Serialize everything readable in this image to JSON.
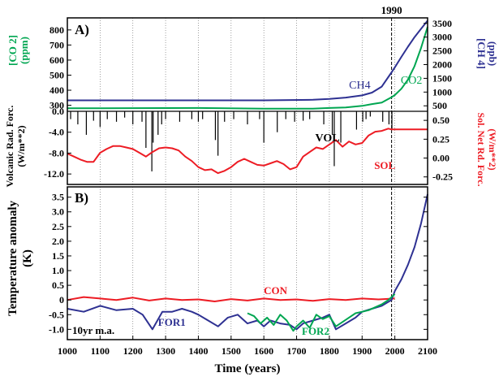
{
  "chart_data": [
    {
      "panel_label": "A)",
      "marker_label": "1990",
      "marker_x": 1990,
      "type": "line",
      "xlim": [
        1000,
        2100
      ],
      "subplots": [
        {
          "name": "greenhouse gases",
          "left_axis": {
            "label_line1": "[CO 2]",
            "label_line2": "(ppm)",
            "color": "#00a651",
            "ticks": [
              "800",
              "700",
              "600",
              "500",
              "400",
              "300"
            ],
            "tick_values": [
              800,
              700,
              600,
              500,
              400,
              300
            ],
            "ylim": [
              260,
              880
            ]
          },
          "right_axis": {
            "label_line1": "[CH 4]",
            "label_line2": "(ppb)",
            "color": "#2e3192",
            "ticks": [
              "3500",
              "3000",
              "2500",
              "2000",
              "1500",
              "1000",
              "500"
            ],
            "tick_values": [
              3500,
              3000,
              2500,
              2000,
              1500,
              1000,
              500
            ],
            "ylim": [
              300,
              3700
            ]
          },
          "series": [
            {
              "name": "CO2",
              "color": "#00a651",
              "axis": "left",
              "x": [
                1000,
                1200,
                1400,
                1600,
                1750,
                1800,
                1850,
                1900,
                1930,
                1960,
                1990,
                2000,
                2020,
                2040,
                2060,
                2080,
                2100
              ],
              "y": [
                280,
                281,
                282,
                278,
                278,
                282,
                286,
                296,
                308,
                318,
                354,
                368,
                410,
                470,
                560,
                680,
                820
              ]
            },
            {
              "name": "CH4",
              "color": "#2e3192",
              "axis": "right",
              "x": [
                1000,
                1200,
                1400,
                1600,
                1750,
                1800,
                1850,
                1900,
                1930,
                1960,
                1990,
                2000,
                2020,
                2040,
                2060,
                2080,
                2100
              ],
              "y": [
                700,
                700,
                700,
                700,
                720,
                750,
                800,
                880,
                980,
                1200,
                1720,
                1900,
                2280,
                2650,
                3000,
                3300,
                3600
              ]
            }
          ]
        },
        {
          "name": "forcings",
          "left_axis": {
            "label_line1": "Volcanic Rad. Forc.",
            "label_line2": "(W/m**2)",
            "color": "#000000",
            "ticks": [
              "0.0",
              "-4.0",
              "-8.0",
              "-12.0"
            ],
            "tick_values": [
              0,
              -4,
              -8,
              -12
            ],
            "ylim": [
              -14,
              0
            ]
          },
          "right_axis": {
            "label_line1": "Sol. Net Rd. Forc.",
            "label_line2": "(W/m**2)",
            "color": "#ed1c24",
            "ticks": [
              "0.50",
              "0.25",
              "0.00",
              "-0.25"
            ],
            "tick_values": [
              0.5,
              0.25,
              0,
              -0.25
            ],
            "ylim": [
              -0.35,
              0.62
            ]
          },
          "series": [
            {
              "name": "VOL",
              "color": "#000000",
              "axis": "left",
              "style": "spikes",
              "x": [
                1010,
                1032,
                1058,
                1080,
                1100,
                1122,
                1150,
                1175,
                1200,
                1228,
                1240,
                1258,
                1262,
                1277,
                1288,
                1300,
                1343,
                1380,
                1400,
                1413,
                1452,
                1460,
                1480,
                1508,
                1550,
                1587,
                1600,
                1641,
                1667,
                1694,
                1720,
                1740,
                1783,
                1809,
                1815,
                1835,
                1883,
                1902,
                1912,
                1925,
                1963,
                1982,
                1991
              ],
              "y": [
                -1.5,
                -2.5,
                -4.5,
                -1.8,
                -3.0,
                -1.5,
                -2.0,
                -1.2,
                -2.5,
                -2.0,
                -7.0,
                -11.5,
                -6.0,
                -4.5,
                -2.5,
                -1.5,
                -2.0,
                -1.5,
                -2.0,
                -1.5,
                -5.5,
                -8.5,
                -2.0,
                -1.5,
                -2.5,
                -1.5,
                -6.0,
                -4.0,
                -1.5,
                -2.0,
                -1.8,
                -1.5,
                -2.5,
                -4.5,
                -10.5,
                -6.0,
                -3.5,
                -2.0,
                -1.5,
                -1.0,
                -2.0,
                -2.5,
                -3.5
              ]
            },
            {
              "name": "SOL",
              "color": "#ed1c24",
              "axis": "right",
              "x": [
                1000,
                1020,
                1040,
                1060,
                1080,
                1100,
                1120,
                1140,
                1160,
                1180,
                1200,
                1220,
                1240,
                1260,
                1280,
                1300,
                1320,
                1340,
                1360,
                1380,
                1400,
                1420,
                1440,
                1460,
                1480,
                1500,
                1520,
                1540,
                1560,
                1580,
                1600,
                1620,
                1640,
                1660,
                1680,
                1700,
                1720,
                1740,
                1760,
                1780,
                1800,
                1820,
                1840,
                1860,
                1880,
                1900,
                1920,
                1940,
                1960,
                1980,
                1990,
                2000,
                2100
              ],
              "y": [
                0.06,
                0.02,
                -0.02,
                -0.05,
                -0.05,
                0.07,
                0.12,
                0.16,
                0.16,
                0.14,
                0.12,
                0.07,
                0.02,
                0.08,
                0.13,
                0.14,
                0.13,
                0.1,
                0.02,
                -0.04,
                -0.12,
                -0.16,
                -0.15,
                -0.2,
                -0.17,
                -0.12,
                -0.05,
                -0.01,
                -0.05,
                -0.09,
                -0.1,
                -0.07,
                -0.04,
                -0.08,
                -0.15,
                -0.12,
                0.02,
                0.08,
                0.14,
                0.12,
                0.18,
                0.24,
                0.15,
                0.22,
                0.18,
                0.2,
                0.3,
                0.35,
                0.36,
                0.39,
                0.38,
                0.38,
                0.38
              ]
            }
          ]
        }
      ],
      "annotations": [
        "CH4",
        "CO2",
        "VOL",
        "SOL"
      ]
    },
    {
      "panel_label": "B)",
      "type": "line",
      "ylabel_line1": "Temperature anomaly",
      "ylabel_line2": "(K)",
      "xlabel": "Time (years)",
      "smoothing_note": "10yr m.a.",
      "xlim": [
        1000,
        2100
      ],
      "ylim": [
        -1.35,
        3.85
      ],
      "xticks": [
        1000,
        1100,
        1200,
        1300,
        1400,
        1500,
        1600,
        1700,
        1800,
        1900,
        2000,
        2100
      ],
      "xtick_labels": [
        "1000",
        "1100",
        "1200",
        "1300",
        "1400",
        "1500",
        "1600",
        "1700",
        "1800",
        "1900",
        "2000",
        "2100"
      ],
      "yticks": [
        3.5,
        3.0,
        2.5,
        2.0,
        1.5,
        1.0,
        0.5,
        0.0,
        -0.5,
        -1.0
      ],
      "ytick_labels": [
        "3.5",
        "3.0",
        "2.5",
        "2.0",
        "1.5",
        "1.0",
        "0.5",
        "0",
        "-0.5",
        "-1.0"
      ],
      "grid": "vertical dotted lines every 100 years",
      "marker_x": 1990,
      "series": [
        {
          "name": "CON",
          "color": "#ed1c24",
          "x": [
            1000,
            1050,
            1100,
            1150,
            1200,
            1250,
            1300,
            1350,
            1400,
            1450,
            1500,
            1550,
            1600,
            1650,
            1700,
            1750,
            1800,
            1850,
            1900,
            1950,
            2000
          ],
          "y": [
            0.0,
            0.1,
            0.05,
            0.0,
            0.08,
            -0.02,
            0.05,
            0.0,
            0.02,
            -0.05,
            0.03,
            -0.02,
            0.05,
            0.0,
            0.02,
            -0.03,
            0.03,
            0.0,
            0.05,
            0.02,
            0.05
          ]
        },
        {
          "name": "FOR1",
          "color": "#2e3192",
          "x": [
            1000,
            1050,
            1100,
            1150,
            1200,
            1230,
            1260,
            1290,
            1320,
            1350,
            1380,
            1400,
            1430,
            1460,
            1490,
            1520,
            1550,
            1580,
            1600,
            1620,
            1650,
            1680,
            1700,
            1720,
            1750,
            1780,
            1800,
            1820,
            1850,
            1880,
            1900,
            1930,
            1960,
            1990,
            2000,
            2020,
            2040,
            2060,
            2080,
            2100
          ],
          "y": [
            -0.3,
            -0.4,
            -0.2,
            -0.35,
            -0.3,
            -0.5,
            -1.0,
            -0.4,
            -0.4,
            -0.3,
            -0.4,
            -0.5,
            -0.7,
            -0.9,
            -0.6,
            -0.5,
            -0.8,
            -0.7,
            -0.9,
            -0.7,
            -0.8,
            -0.85,
            -1.0,
            -0.8,
            -0.7,
            -0.6,
            -0.5,
            -1.0,
            -0.8,
            -0.6,
            -0.4,
            -0.3,
            -0.2,
            0.0,
            0.3,
            0.7,
            1.2,
            1.8,
            2.6,
            3.6
          ]
        },
        {
          "name": "FOR2",
          "color": "#00a651",
          "x": [
            1550,
            1570,
            1590,
            1610,
            1630,
            1650,
            1670,
            1690,
            1700,
            1720,
            1740,
            1760,
            1780,
            1800,
            1820,
            1840,
            1860,
            1880,
            1900,
            1920,
            1940,
            1960,
            1980,
            2000
          ],
          "y": [
            -0.45,
            -0.55,
            -0.8,
            -0.6,
            -0.85,
            -0.5,
            -0.7,
            -1.05,
            -0.9,
            -0.7,
            -0.95,
            -0.5,
            -0.65,
            -0.55,
            -0.9,
            -0.75,
            -0.6,
            -0.45,
            -0.4,
            -0.35,
            -0.25,
            -0.15,
            0.0,
            0.2
          ]
        }
      ],
      "series_labels": [
        "CON",
        "FOR1",
        "FOR2"
      ]
    }
  ]
}
